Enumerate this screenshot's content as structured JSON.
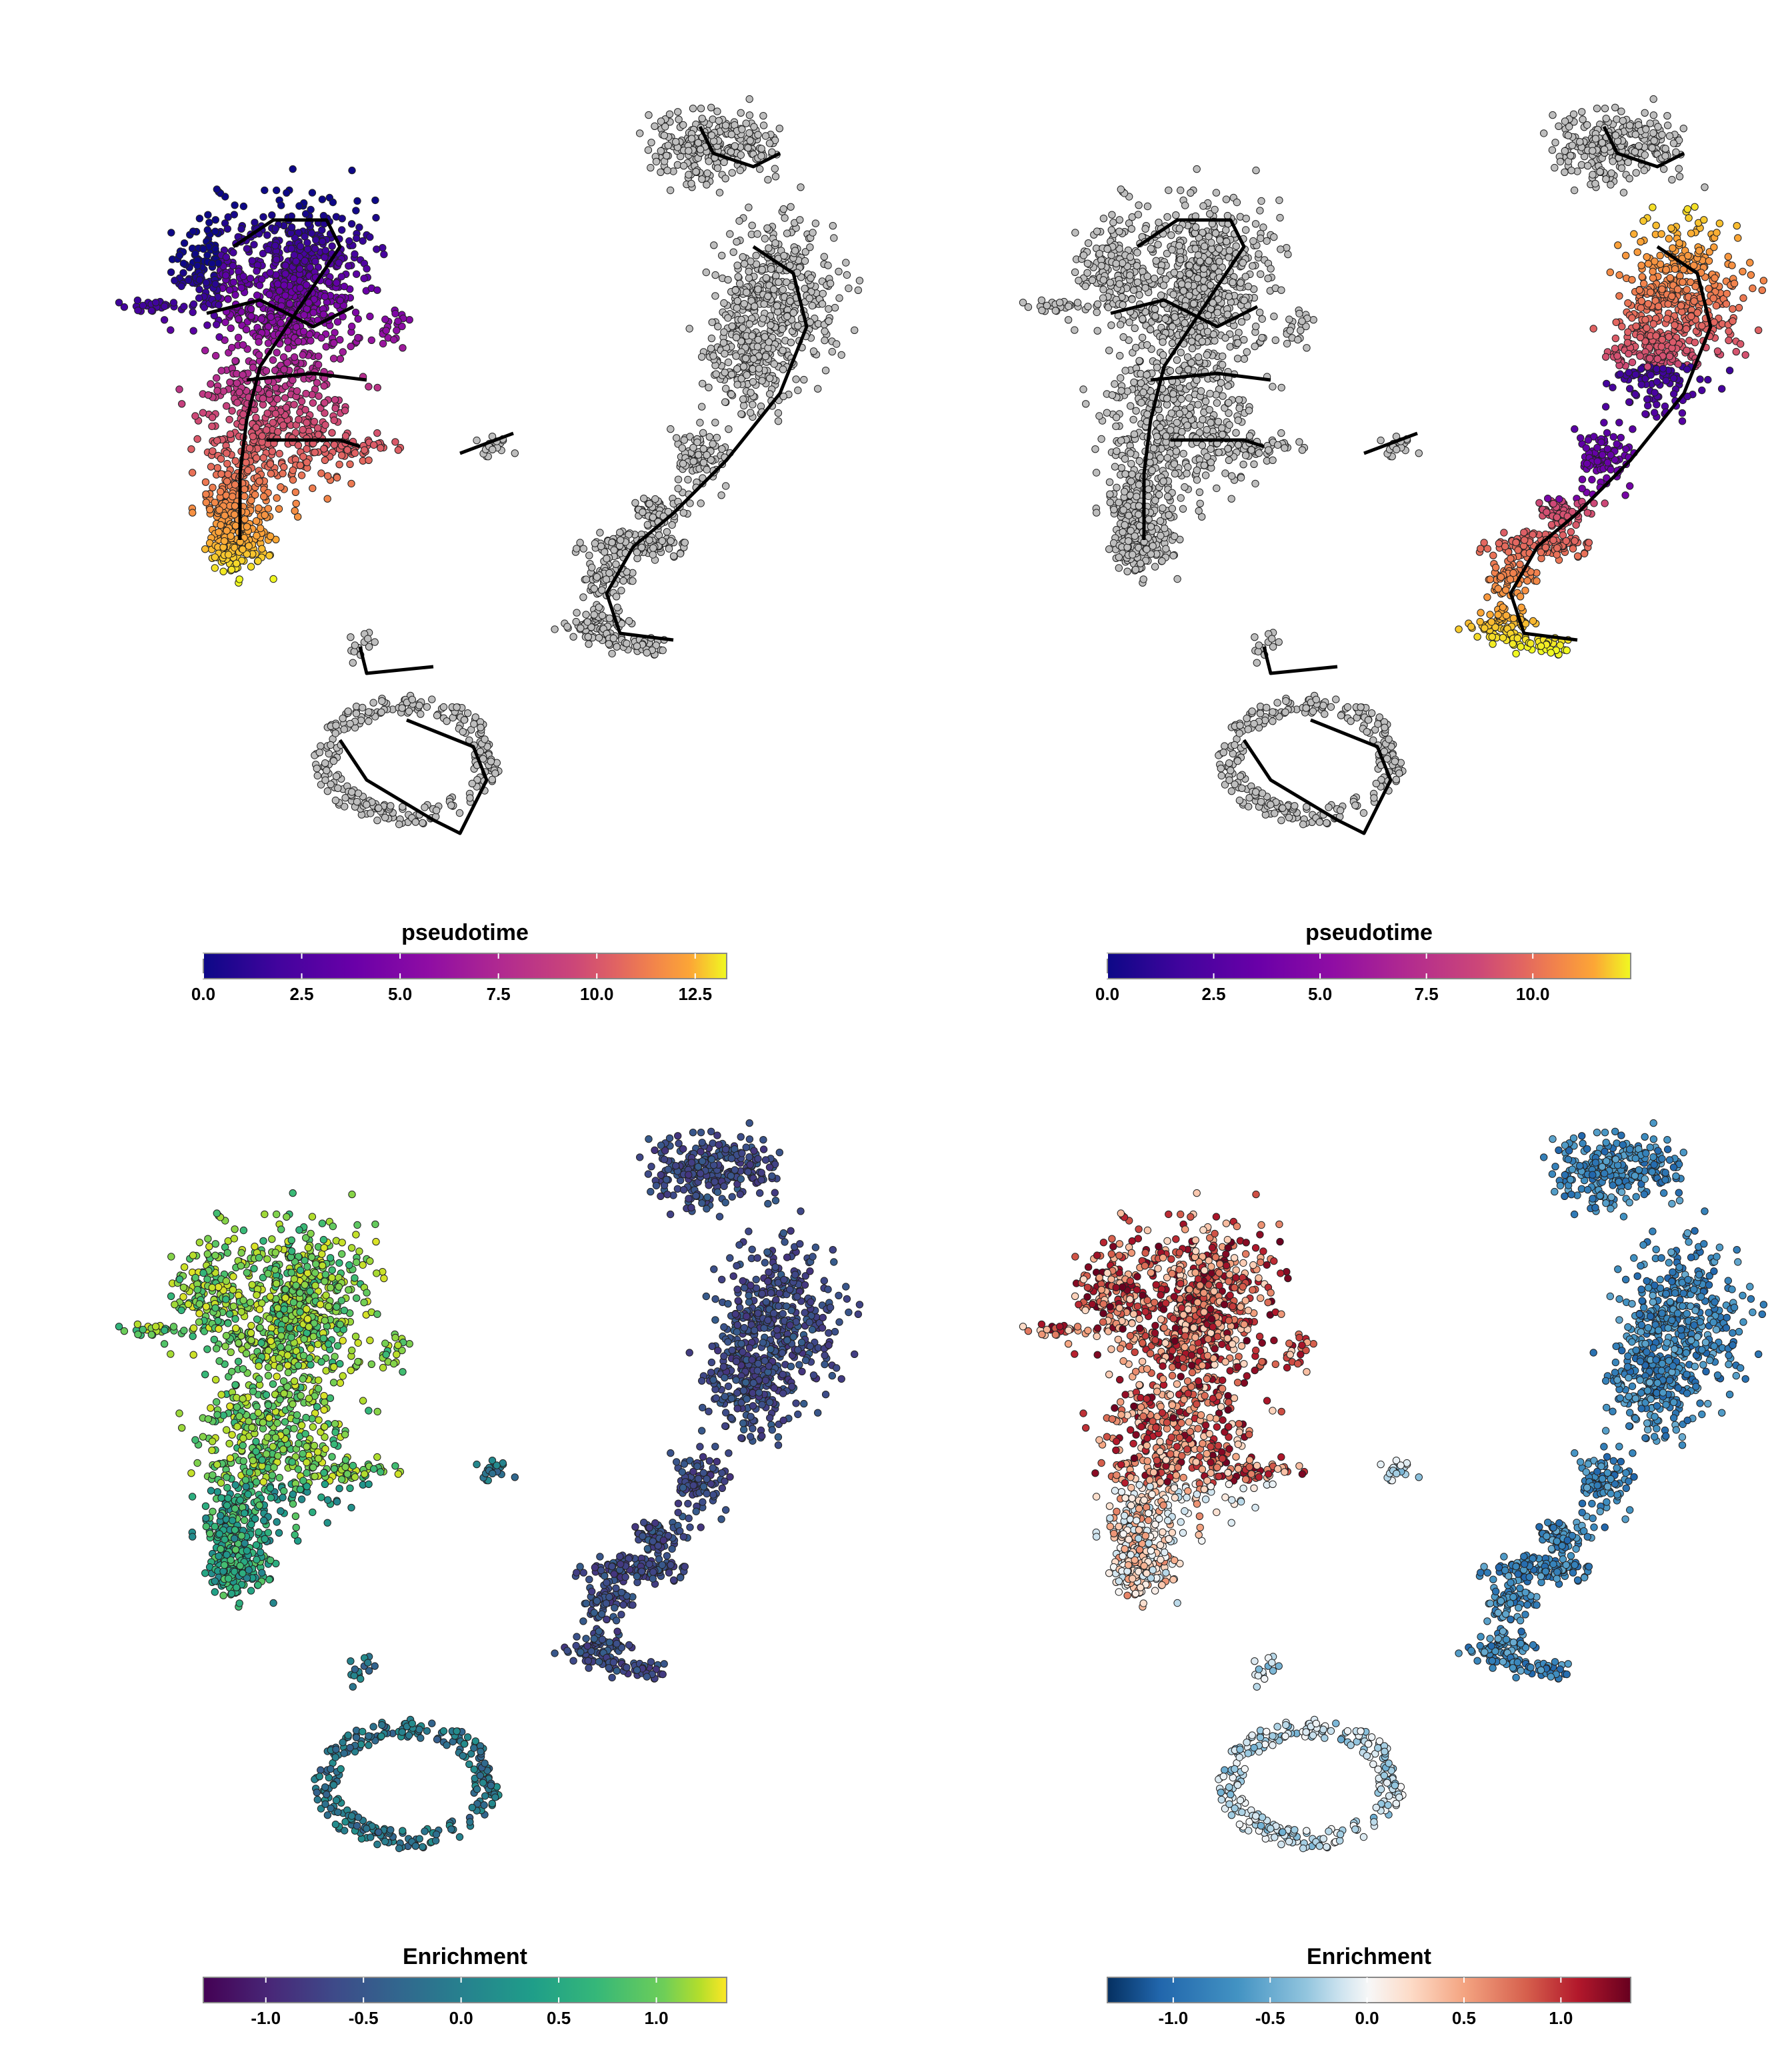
{
  "chart_data": [
    {
      "type": "scatter",
      "panel": "top-left",
      "colorbar": {
        "title": "pseudotime",
        "palette": "plasma",
        "range": [
          0,
          13.3
        ],
        "ticks": [
          0.0,
          2.5,
          5.0,
          7.5,
          10.0,
          12.5
        ],
        "tick_labels": [
          "0.0",
          "2.5",
          "5.0",
          "7.5",
          "10.0",
          "12.5"
        ]
      },
      "highlighted_lineage": "left",
      "other_cells_color": "#bebebe",
      "trajectory_color": "#000000"
    },
    {
      "type": "scatter",
      "panel": "top-right",
      "colorbar": {
        "title": "pseudotime",
        "palette": "plasma",
        "range": [
          0,
          12.3
        ],
        "ticks": [
          0.0,
          2.5,
          5.0,
          7.5,
          10.0
        ],
        "tick_labels": [
          "0.0",
          "2.5",
          "5.0",
          "7.5",
          "10.0"
        ]
      },
      "highlighted_lineage": "right",
      "other_cells_color": "#bebebe",
      "trajectory_color": "#000000"
    },
    {
      "type": "scatter",
      "panel": "bottom-left",
      "colorbar": {
        "title": "Enrichment",
        "palette": "viridis",
        "range": [
          -1.32,
          1.36
        ],
        "ticks": [
          -1.0,
          -0.5,
          0.0,
          0.5,
          1.0
        ],
        "tick_labels": [
          "-1.0",
          "-0.5",
          "0.0",
          "0.5",
          "1.0"
        ]
      }
    },
    {
      "type": "scatter",
      "panel": "bottom-right",
      "colorbar": {
        "title": "Enrichment",
        "palette": "RdBu (reversed)",
        "range": [
          -1.34,
          1.36
        ],
        "ticks": [
          -1.0,
          -0.5,
          0.0,
          0.5,
          1.0
        ],
        "tick_labels": [
          "-1.0",
          "-0.5",
          "0.0",
          "0.5",
          "1.0"
        ]
      }
    }
  ]
}
